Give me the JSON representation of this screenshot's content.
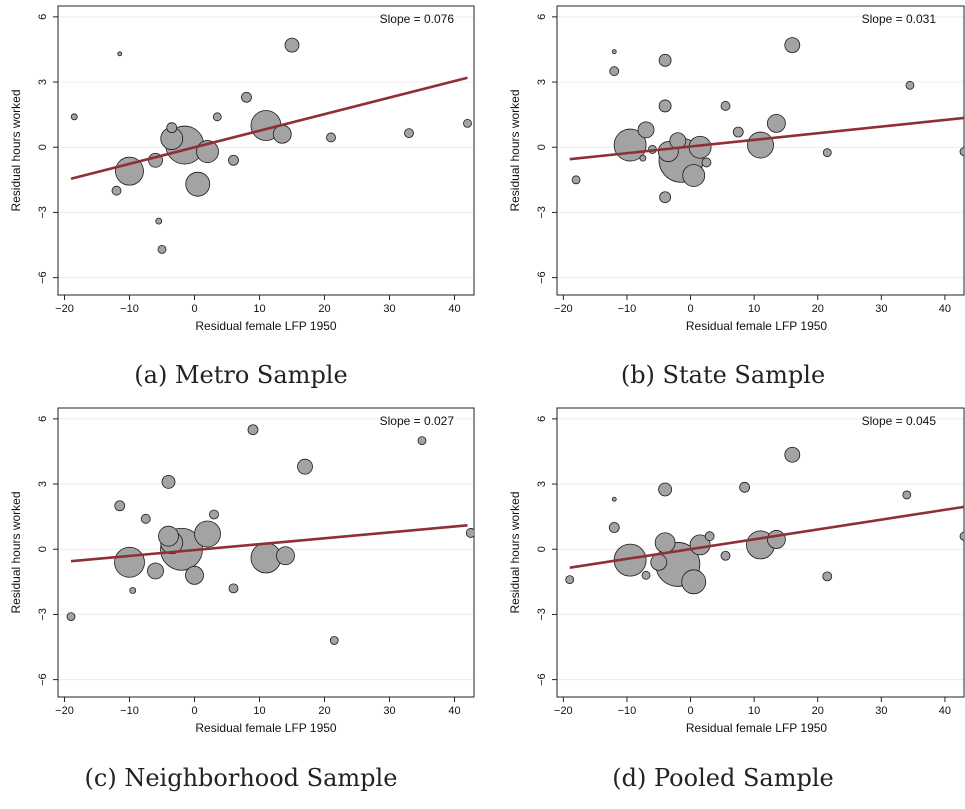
{
  "chart_data": [
    {
      "type": "scatter",
      "caption": "(a) Metro Sample",
      "annotation": "Slope = 0.076",
      "xlabel": "Residual female LFP 1950",
      "ylabel": "Residual hours worked",
      "xlim": [
        -21,
        43
      ],
      "ylim": [
        -6.8,
        6.5
      ],
      "xticks": [
        -20,
        -10,
        0,
        10,
        20,
        30,
        40
      ],
      "xtick_labels": [
        "−20",
        "−10",
        "0",
        "10",
        "20",
        "30",
        "40"
      ],
      "yticks": [
        -6,
        -3,
        0,
        3,
        6
      ],
      "ytick_labels": [
        "−6",
        "−3",
        "0",
        "3",
        "6"
      ],
      "fit_line": {
        "x": [
          -19,
          42
        ],
        "y": [
          -1.45,
          3.2
        ]
      },
      "points": [
        {
          "x": -18.5,
          "y": 1.4,
          "r": 3
        },
        {
          "x": -11.5,
          "y": 4.3,
          "r": 2
        },
        {
          "x": -12,
          "y": -2.0,
          "r": 4.5
        },
        {
          "x": -10,
          "y": -1.1,
          "r": 14
        },
        {
          "x": -6,
          "y": -0.6,
          "r": 7
        },
        {
          "x": -5.5,
          "y": -3.4,
          "r": 3
        },
        {
          "x": -5,
          "y": -4.7,
          "r": 4
        },
        {
          "x": -3.5,
          "y": 0.4,
          "r": 11
        },
        {
          "x": -3.5,
          "y": 0.9,
          "r": 5
        },
        {
          "x": -1.5,
          "y": 0.1,
          "r": 19
        },
        {
          "x": 2,
          "y": -0.2,
          "r": 11
        },
        {
          "x": 0.5,
          "y": -1.7,
          "r": 12
        },
        {
          "x": 3.5,
          "y": 1.4,
          "r": 4
        },
        {
          "x": 6,
          "y": -0.6,
          "r": 5
        },
        {
          "x": 8,
          "y": 2.3,
          "r": 5
        },
        {
          "x": 11,
          "y": 1.0,
          "r": 15
        },
        {
          "x": 13.5,
          "y": 0.6,
          "r": 9
        },
        {
          "x": 15,
          "y": 4.7,
          "r": 7
        },
        {
          "x": 21,
          "y": 0.45,
          "r": 4.5
        },
        {
          "x": 33,
          "y": 0.65,
          "r": 4.5
        },
        {
          "x": 42,
          "y": 1.1,
          "r": 4
        }
      ]
    },
    {
      "type": "scatter",
      "caption": "(b) State Sample",
      "annotation": "Slope = 0.031",
      "xlabel": "Residual female LFP 1950",
      "ylabel": "Residual hours worked",
      "xlim": [
        -21,
        43
      ],
      "ylim": [
        -6.8,
        6.5
      ],
      "xticks": [
        -20,
        -10,
        0,
        10,
        20,
        30,
        40
      ],
      "xtick_labels": [
        "−20",
        "−10",
        "0",
        "10",
        "20",
        "30",
        "40"
      ],
      "yticks": [
        -6,
        -3,
        0,
        3,
        6
      ],
      "ytick_labels": [
        "−6",
        "−3",
        "0",
        "3",
        "6"
      ],
      "fit_line": {
        "x": [
          -19,
          43
        ],
        "y": [
          -0.55,
          1.35
        ]
      },
      "points": [
        {
          "x": -18,
          "y": -1.5,
          "r": 4
        },
        {
          "x": -12,
          "y": 4.4,
          "r": 2
        },
        {
          "x": -12,
          "y": 3.5,
          "r": 4.5
        },
        {
          "x": -9.5,
          "y": 0.1,
          "r": 16
        },
        {
          "x": -7,
          "y": 0.8,
          "r": 8
        },
        {
          "x": -6,
          "y": -0.1,
          "r": 4
        },
        {
          "x": -7.5,
          "y": -0.5,
          "r": 3
        },
        {
          "x": -4,
          "y": 4.0,
          "r": 6
        },
        {
          "x": -4,
          "y": 1.9,
          "r": 6
        },
        {
          "x": -4,
          "y": -2.3,
          "r": 5.5
        },
        {
          "x": -3.5,
          "y": -0.2,
          "r": 10
        },
        {
          "x": -2,
          "y": 0.3,
          "r": 8
        },
        {
          "x": -1.5,
          "y": -0.6,
          "r": 22
        },
        {
          "x": 0.5,
          "y": -1.3,
          "r": 11
        },
        {
          "x": 1.5,
          "y": 0.0,
          "r": 11
        },
        {
          "x": 2.5,
          "y": -0.7,
          "r": 4.5
        },
        {
          "x": 5.5,
          "y": 1.9,
          "r": 4.5
        },
        {
          "x": 7.5,
          "y": 0.7,
          "r": 5
        },
        {
          "x": 11,
          "y": 0.1,
          "r": 13
        },
        {
          "x": 13.5,
          "y": 1.1,
          "r": 9
        },
        {
          "x": 16,
          "y": 4.7,
          "r": 7.5
        },
        {
          "x": 21.5,
          "y": -0.25,
          "r": 4
        },
        {
          "x": 34.5,
          "y": 2.85,
          "r": 4
        },
        {
          "x": 43,
          "y": -0.2,
          "r": 4
        }
      ]
    },
    {
      "type": "scatter",
      "caption": "(c) Neighborhood Sample",
      "annotation": "Slope = 0.027",
      "xlabel": "Residual female LFP 1950",
      "ylabel": "Residual hours worked",
      "xlim": [
        -21,
        43
      ],
      "ylim": [
        -6.8,
        6.5
      ],
      "xticks": [
        -20,
        -10,
        0,
        10,
        20,
        30,
        40
      ],
      "xtick_labels": [
        "−20",
        "−10",
        "0",
        "10",
        "20",
        "30",
        "40"
      ],
      "yticks": [
        -6,
        -3,
        0,
        3,
        6
      ],
      "ytick_labels": [
        "−6",
        "−3",
        "0",
        "3",
        "6"
      ],
      "fit_line": {
        "x": [
          -19,
          42
        ],
        "y": [
          -0.55,
          1.1
        ]
      },
      "points": [
        {
          "x": -19,
          "y": -3.1,
          "r": 4
        },
        {
          "x": -11.5,
          "y": 2.0,
          "r": 5
        },
        {
          "x": -9.5,
          "y": -1.9,
          "r": 3
        },
        {
          "x": -7.5,
          "y": 1.4,
          "r": 4.5
        },
        {
          "x": -10,
          "y": -0.6,
          "r": 15
        },
        {
          "x": -6,
          "y": -1.0,
          "r": 8
        },
        {
          "x": -4,
          "y": 3.1,
          "r": 6.5
        },
        {
          "x": -4,
          "y": 0.6,
          "r": 10
        },
        {
          "x": -3.5,
          "y": 0.3,
          "r": 11
        },
        {
          "x": -2,
          "y": 0.0,
          "r": 21
        },
        {
          "x": 0,
          "y": -1.2,
          "r": 9
        },
        {
          "x": 2,
          "y": 0.7,
          "r": 13
        },
        {
          "x": 3,
          "y": 1.6,
          "r": 4.5
        },
        {
          "x": 6,
          "y": -1.8,
          "r": 4.5
        },
        {
          "x": 9,
          "y": 5.5,
          "r": 5
        },
        {
          "x": 11,
          "y": -0.4,
          "r": 15
        },
        {
          "x": 14,
          "y": -0.3,
          "r": 9
        },
        {
          "x": 17,
          "y": 3.8,
          "r": 7.5
        },
        {
          "x": 21.5,
          "y": -4.2,
          "r": 4
        },
        {
          "x": 35,
          "y": 5.0,
          "r": 4
        },
        {
          "x": 42.5,
          "y": 0.75,
          "r": 4.5
        }
      ]
    },
    {
      "type": "scatter",
      "caption": "(d) Pooled Sample",
      "annotation": "Slope = 0.045",
      "xlabel": "Residual female LFP 1950",
      "ylabel": "Residual hours worked",
      "xlim": [
        -21,
        43
      ],
      "ylim": [
        -6.8,
        6.5
      ],
      "xticks": [
        -20,
        -10,
        0,
        10,
        20,
        30,
        40
      ],
      "xtick_labels": [
        "−20",
        "−10",
        "0",
        "10",
        "20",
        "30",
        "40"
      ],
      "yticks": [
        -6,
        -3,
        0,
        3,
        6
      ],
      "ytick_labels": [
        "−6",
        "−3",
        "0",
        "3",
        "6"
      ],
      "fit_line": {
        "x": [
          -19,
          43
        ],
        "y": [
          -0.85,
          1.95
        ]
      },
      "points": [
        {
          "x": -19,
          "y": -1.4,
          "r": 4
        },
        {
          "x": -12,
          "y": 2.3,
          "r": 2
        },
        {
          "x": -12,
          "y": 1.0,
          "r": 5
        },
        {
          "x": -9.5,
          "y": -0.5,
          "r": 16
        },
        {
          "x": -7,
          "y": -1.2,
          "r": 4
        },
        {
          "x": -5,
          "y": -0.6,
          "r": 8
        },
        {
          "x": -4,
          "y": 2.75,
          "r": 6.5
        },
        {
          "x": -4,
          "y": 0.3,
          "r": 10
        },
        {
          "x": -2,
          "y": -0.7,
          "r": 22
        },
        {
          "x": 0.5,
          "y": -1.5,
          "r": 12
        },
        {
          "x": 1.5,
          "y": 0.2,
          "r": 10
        },
        {
          "x": 3,
          "y": 0.6,
          "r": 4.5
        },
        {
          "x": 5.5,
          "y": -0.3,
          "r": 4.5
        },
        {
          "x": 8.5,
          "y": 2.85,
          "r": 5
        },
        {
          "x": 11,
          "y": 0.2,
          "r": 14
        },
        {
          "x": 13.5,
          "y": 0.45,
          "r": 9
        },
        {
          "x": 16,
          "y": 4.35,
          "r": 7.5
        },
        {
          "x": 21.5,
          "y": -1.25,
          "r": 4.5
        },
        {
          "x": 34,
          "y": 2.5,
          "r": 4
        },
        {
          "x": 43,
          "y": 0.6,
          "r": 4
        }
      ]
    }
  ]
}
